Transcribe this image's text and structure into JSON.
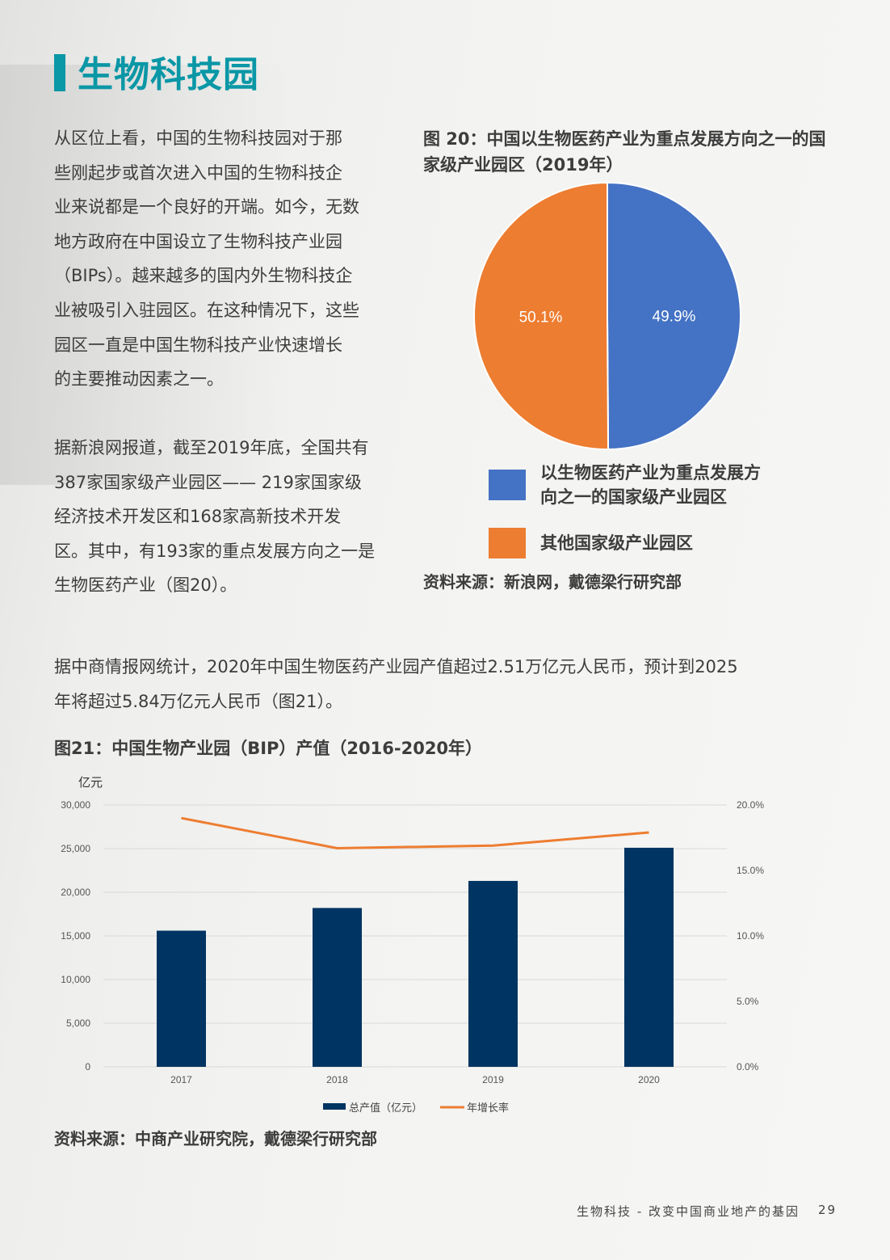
{
  "title": "生物科技园",
  "paragraph1": [
    "从区位上看，中国的生物科技园对于那",
    "些刚起步或首次进入中国的生物科技企",
    "业来说都是一个良好的开端。如今，无数",
    "地方政府在中国设立了生物科技产业园",
    "（BIPs）。越来越多的国内外生物科技企",
    "业被吸引入驻园区。在这种情况下，这些",
    "园区一直是中国生物科技产业快速增长",
    "的主要推动因素之一。"
  ],
  "paragraph2": [
    "据新浪网报道，截至2019年底，全国共有",
    "387家国家级产业园区—— 219家国家级",
    "经济技术开发区和168家高新技术开发",
    "区。其中，有193家的重点发展方向之一是",
    "生物医药产业（图20）。"
  ],
  "paragraph3": [
    "据中商情报网统计，2020年中国生物医药产业园产值超过2.51万亿元人民币，预计到2025",
    "年将超过5.84万亿元人民币（图21）。"
  ],
  "figure20": {
    "title_lines": [
      "图 20：中国以生物医药产业为重点发展方向之一的国",
      "家级产业园区（2019年）"
    ],
    "source": "资料来源：新浪网，戴德梁行研究部"
  },
  "figure21": {
    "title": "图21：中国生物产业园（BIP）产值（2016-2020年）",
    "source": "资料来源：中商产业研究院，戴德梁行研究部"
  },
  "chart_data": [
    {
      "type": "pie",
      "title": "图 20：中国以生物医药产业为重点发展方向之一的国家级产业园区（2019年）",
      "slices": [
        {
          "label": "以生物医药产业为重点发展方向之一的国家级产业园区",
          "value": 49.9,
          "display": "49.9%",
          "color": "#4472c4"
        },
        {
          "label": "其他国家级产业园区",
          "value": 50.1,
          "display": "50.1%",
          "color": "#ed7d31"
        }
      ],
      "legend_lines": [
        [
          "以生物医药产业为重点发展方",
          "向之一的国家级产业园区"
        ],
        [
          "其他国家级产业园区"
        ]
      ],
      "legend_position": "bottom"
    },
    {
      "type": "bar",
      "title": "图21：中国生物产业园（BIP）产值（2016-2020年）",
      "categories": [
        "2017",
        "2018",
        "2019",
        "2020"
      ],
      "series": [
        {
          "name": "总产值（亿元）",
          "type": "bar",
          "axis": "left",
          "color": "#003462",
          "values": [
            15600,
            18200,
            21300,
            25100
          ]
        },
        {
          "name": "年增长率",
          "type": "line",
          "axis": "right",
          "color": "#ed7d31",
          "values": [
            19.0,
            16.7,
            16.9,
            17.9
          ]
        }
      ],
      "ylabel": "亿元",
      "ylim": [
        0,
        30000
      ],
      "yticks": [
        "0",
        "5,000",
        "10,000",
        "15,000",
        "20,000",
        "25,000",
        "30,000"
      ],
      "y2lim": [
        0,
        20
      ],
      "y2ticks": [
        "0.0%",
        "5.0%",
        "10.0%",
        "15.0%",
        "20.0%"
      ],
      "grid": true,
      "legend_position": "bottom"
    }
  ],
  "footer": {
    "text": "生物科技 - 改变中国商业地产的基因",
    "page": "29"
  }
}
